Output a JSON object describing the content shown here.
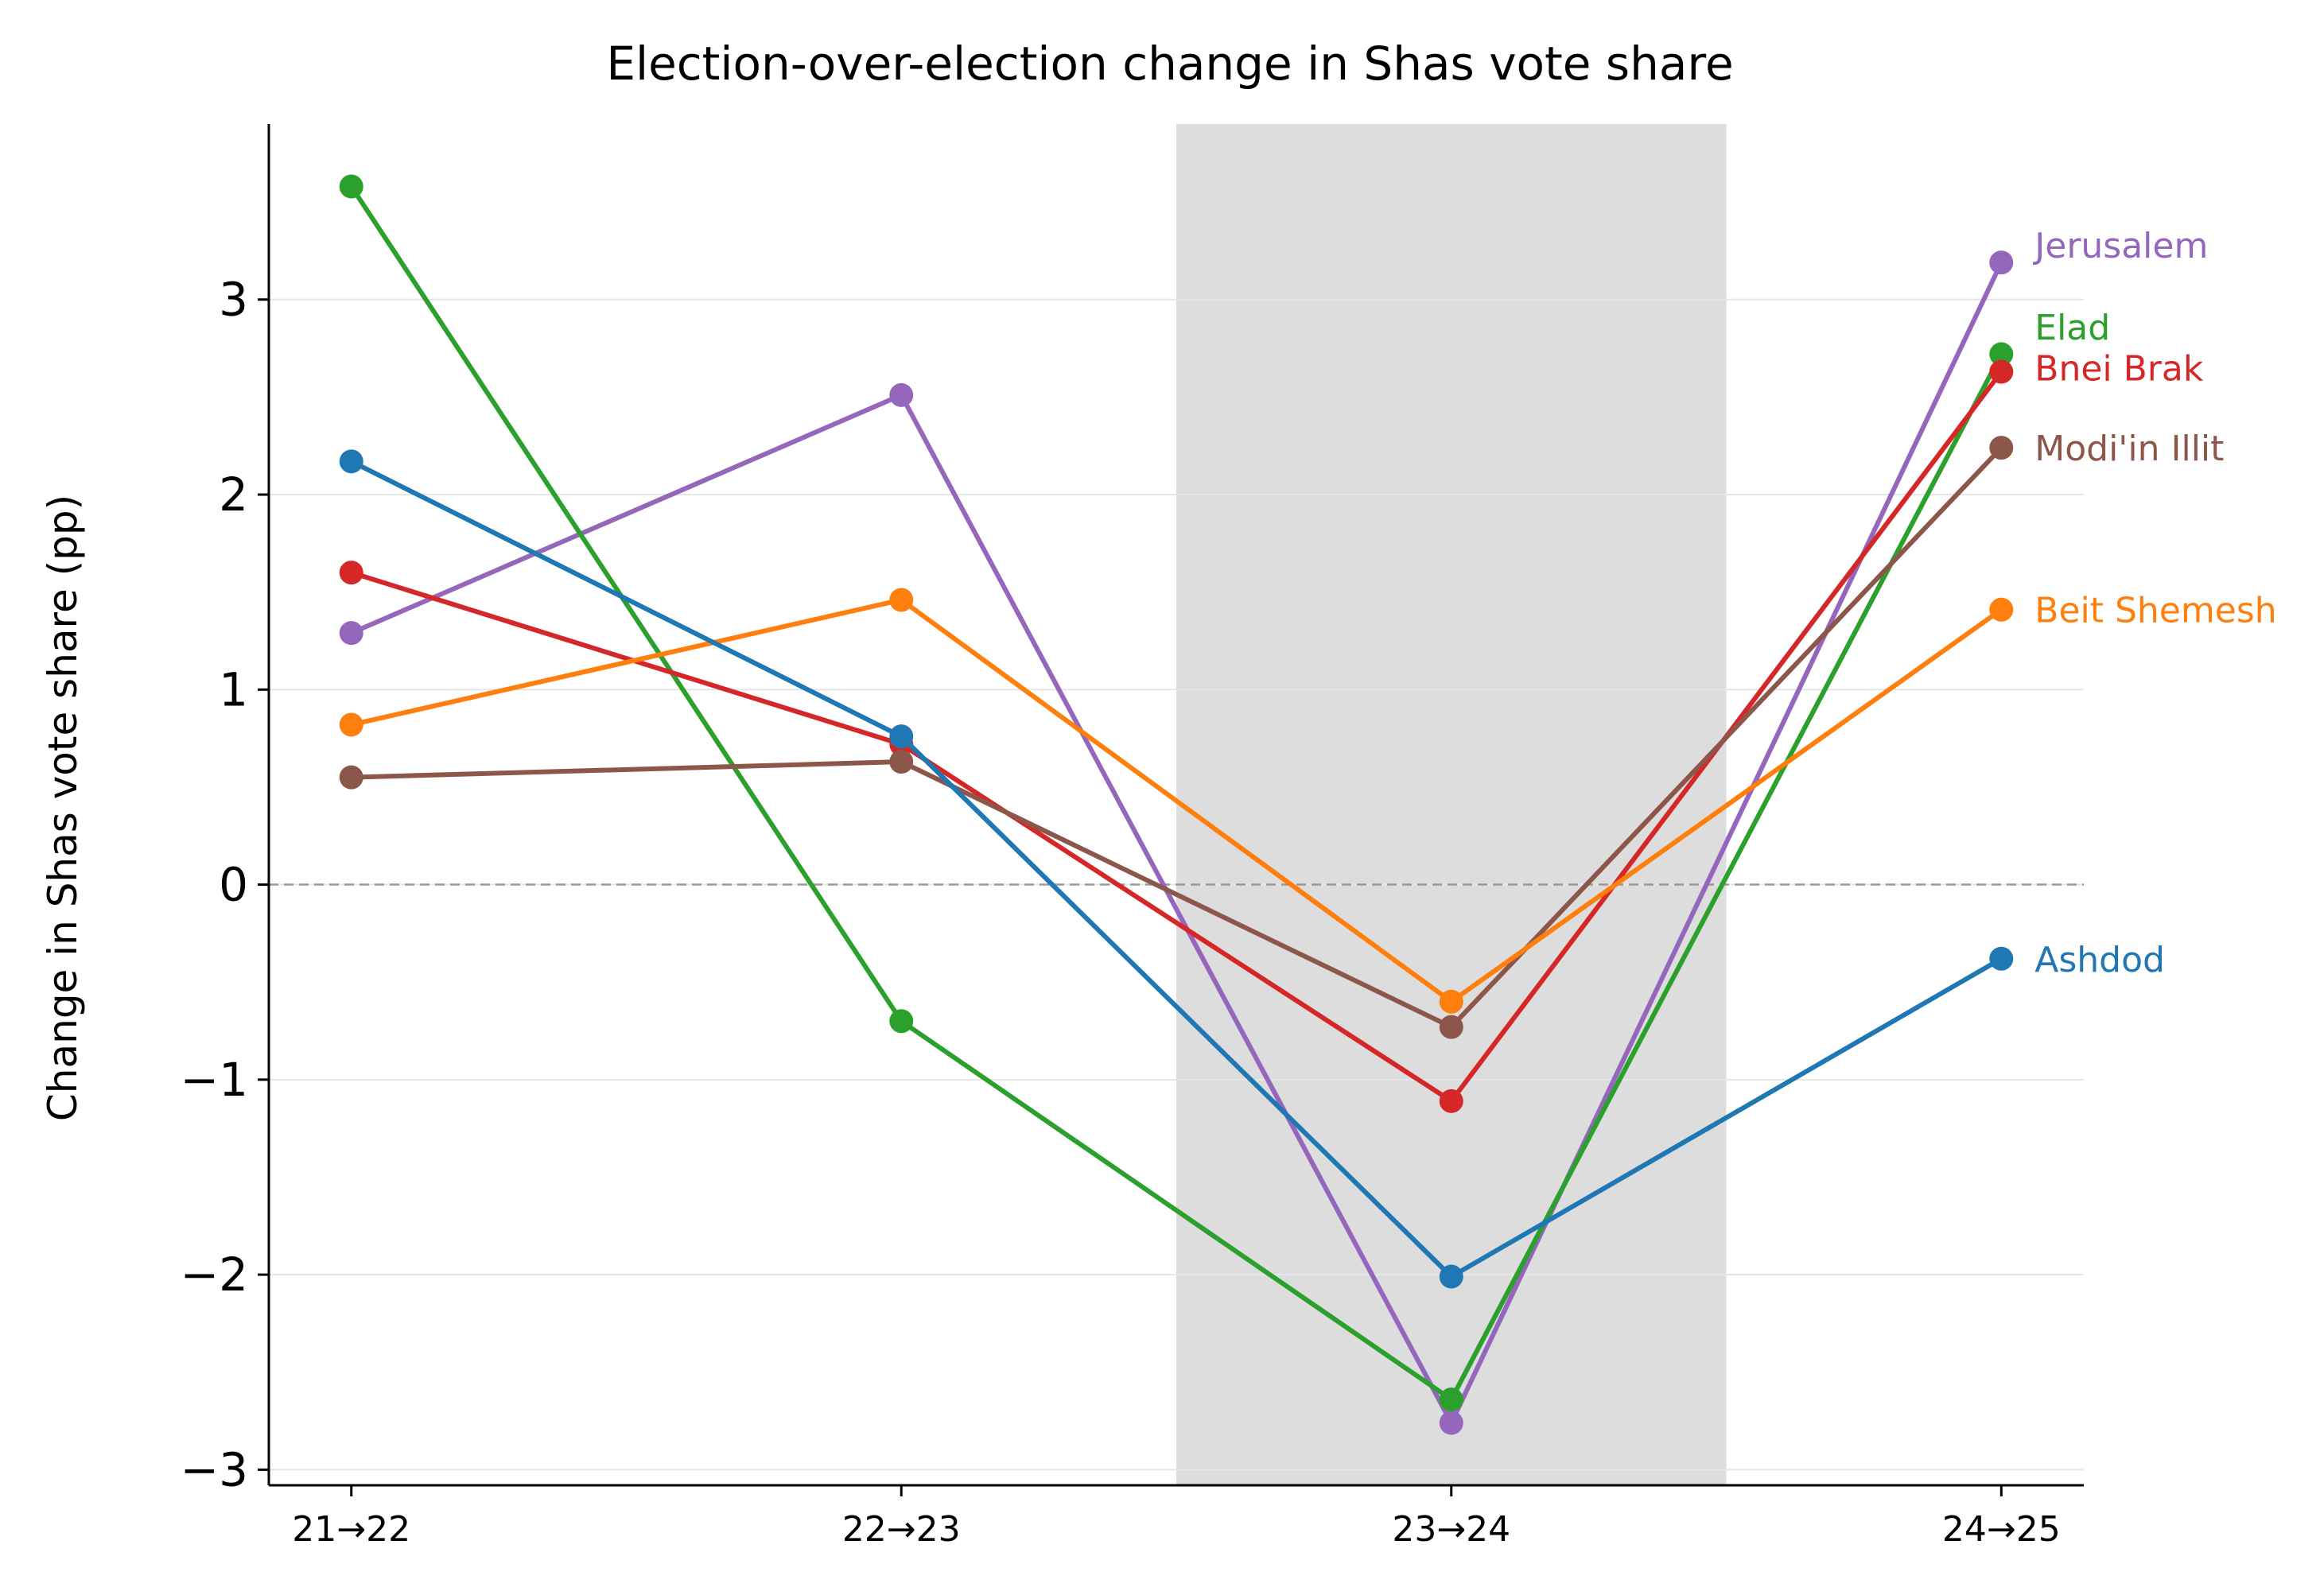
{
  "chart_data": {
    "type": "line",
    "title": "Election-over-election change in Shas vote share",
    "xlabel": "",
    "ylabel": "Change in Shas vote share (pp)",
    "categories": [
      "21→22",
      "22→23",
      "23→24",
      "24→25"
    ],
    "ylim": [
      -3.08,
      3.9
    ],
    "yticks": [
      -3,
      -2,
      -1,
      0,
      1,
      2,
      3
    ],
    "ytick_labels": [
      "−3",
      "−2",
      "−1",
      "0",
      "1",
      "2",
      "3"
    ],
    "grid": true,
    "zero_line": true,
    "highlight_span": {
      "from": 1.5,
      "to": 2.5
    },
    "legend": "direct labels at right end of lines",
    "series": [
      {
        "name": "Jerusalem",
        "color": "#9467bd",
        "values": [
          1.29,
          2.51,
          -2.76,
          3.19
        ]
      },
      {
        "name": "Elad",
        "color": "#2ca02c",
        "values": [
          3.58,
          -0.7,
          -2.64,
          2.72
        ]
      },
      {
        "name": "Bnei Brak",
        "color": "#d62728",
        "values": [
          1.6,
          0.72,
          -1.11,
          2.63
        ]
      },
      {
        "name": "Modi'in Illit",
        "color": "#8c564b",
        "values": [
          0.55,
          0.63,
          -0.73,
          2.24
        ]
      },
      {
        "name": "Beit Shemesh",
        "color": "#ff7f0e",
        "values": [
          0.82,
          1.46,
          -0.6,
          1.41
        ]
      },
      {
        "name": "Ashdod",
        "color": "#1f77b4",
        "values": [
          2.17,
          0.76,
          -2.01,
          -0.38
        ]
      }
    ],
    "label_offsets": {
      "Jerusalem": 0.09,
      "Elad": 0.14,
      "Bnei Brak": 0.02,
      "Modi'in Illit": 0.0,
      "Beit Shemesh": 0.0,
      "Ashdod": 0.0
    }
  }
}
